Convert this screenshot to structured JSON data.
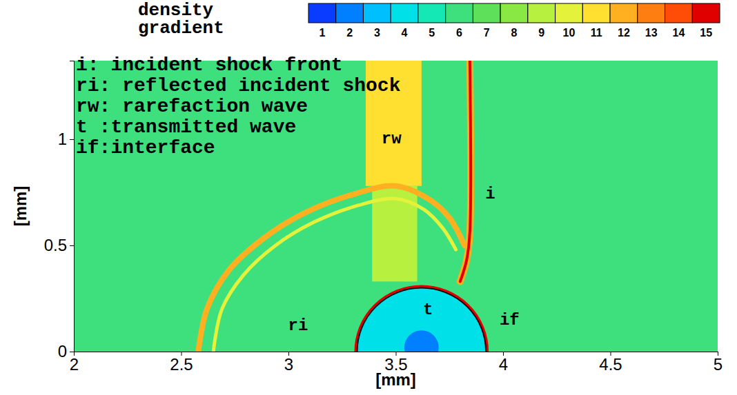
{
  "chart_data": {
    "type": "field",
    "x_label": "[mm]",
    "y_label": "[mm]",
    "xlim": [
      2,
      5
    ],
    "xticks": [
      2,
      2.5,
      3,
      3.5,
      4,
      4.5,
      5
    ],
    "ylim": [
      0,
      1.37
    ],
    "yticks": [
      0,
      0.5,
      1
    ],
    "colorbar_title": "density gradient",
    "colorbar_range": [
      0.5,
      15.5
    ],
    "colorbar_ticks": [
      1,
      2,
      3,
      4,
      5,
      6,
      7,
      8,
      9,
      10,
      11,
      12,
      13,
      14,
      15
    ],
    "colors": [
      "#0a3cff",
      "#0080ff",
      "#00bfff",
      "#00e0e8",
      "#14e8b4",
      "#3ee07e",
      "#5ee05a",
      "#8ae844",
      "#b8f040",
      "#e4f23c",
      "#ffe030",
      "#ffb020",
      "#ff7e12",
      "#ff4c06",
      "#e00000"
    ],
    "background": 6,
    "bands": [
      {
        "x": [
          3.36,
          3.62
        ],
        "y": [
          0.78,
          1.37
        ],
        "value": 11
      },
      {
        "x": [
          3.39,
          3.6
        ],
        "y": [
          0.33,
          0.78
        ],
        "value": 9
      }
    ],
    "curves": [
      {
        "points": [
          [
            3.845,
            1.37
          ],
          [
            3.845,
            0.56
          ],
          [
            3.83,
            0.43
          ],
          [
            3.8,
            0.33
          ]
        ],
        "value": 12
      },
      {
        "points": [
          [
            3.845,
            1.37
          ],
          [
            3.845,
            0.56
          ],
          [
            3.83,
            0.43
          ],
          [
            3.8,
            0.33
          ]
        ],
        "value": 15
      },
      {
        "points": [
          [
            2.58,
            0
          ],
          [
            2.62,
            0.2
          ],
          [
            2.72,
            0.38
          ],
          [
            2.88,
            0.53
          ],
          [
            3.07,
            0.65
          ],
          [
            3.3,
            0.74
          ],
          [
            3.5,
            0.78
          ],
          [
            3.65,
            0.72
          ],
          [
            3.75,
            0.63
          ],
          [
            3.82,
            0.5
          ]
        ],
        "value": 12
      },
      {
        "points": [
          [
            2.65,
            0
          ],
          [
            2.69,
            0.2
          ],
          [
            2.79,
            0.36
          ],
          [
            2.94,
            0.5
          ],
          [
            3.12,
            0.61
          ],
          [
            3.33,
            0.69
          ],
          [
            3.5,
            0.72
          ],
          [
            3.63,
            0.67
          ],
          [
            3.72,
            0.58
          ],
          [
            3.78,
            0.48
          ]
        ],
        "value": 10
      }
    ],
    "ellipses": [
      {
        "center": [
          3.62,
          0
        ],
        "radius": 0.3,
        "value": 4
      },
      {
        "center": [
          3.62,
          0.02
        ],
        "radius": 0.08,
        "value": 2
      }
    ],
    "interface": {
      "center": [
        3.62,
        0
      ],
      "radius": 0.3,
      "value": 15
    },
    "glossary": [
      "i: incident shock front",
      "ri: reflected incident shock",
      "rw: rarefaction wave",
      "t :transmitted wave",
      "if:interface"
    ],
    "annotations": [
      {
        "text": "rw",
        "x": 3.48,
        "y": 1.0
      },
      {
        "text": "i",
        "x": 3.94,
        "y": 0.74
      },
      {
        "text": "t",
        "x": 3.65,
        "y": 0.195
      },
      {
        "text": "if",
        "x": 4.03,
        "y": 0.146
      },
      {
        "text": "ri",
        "x": 3.045,
        "y": 0.12
      }
    ]
  }
}
